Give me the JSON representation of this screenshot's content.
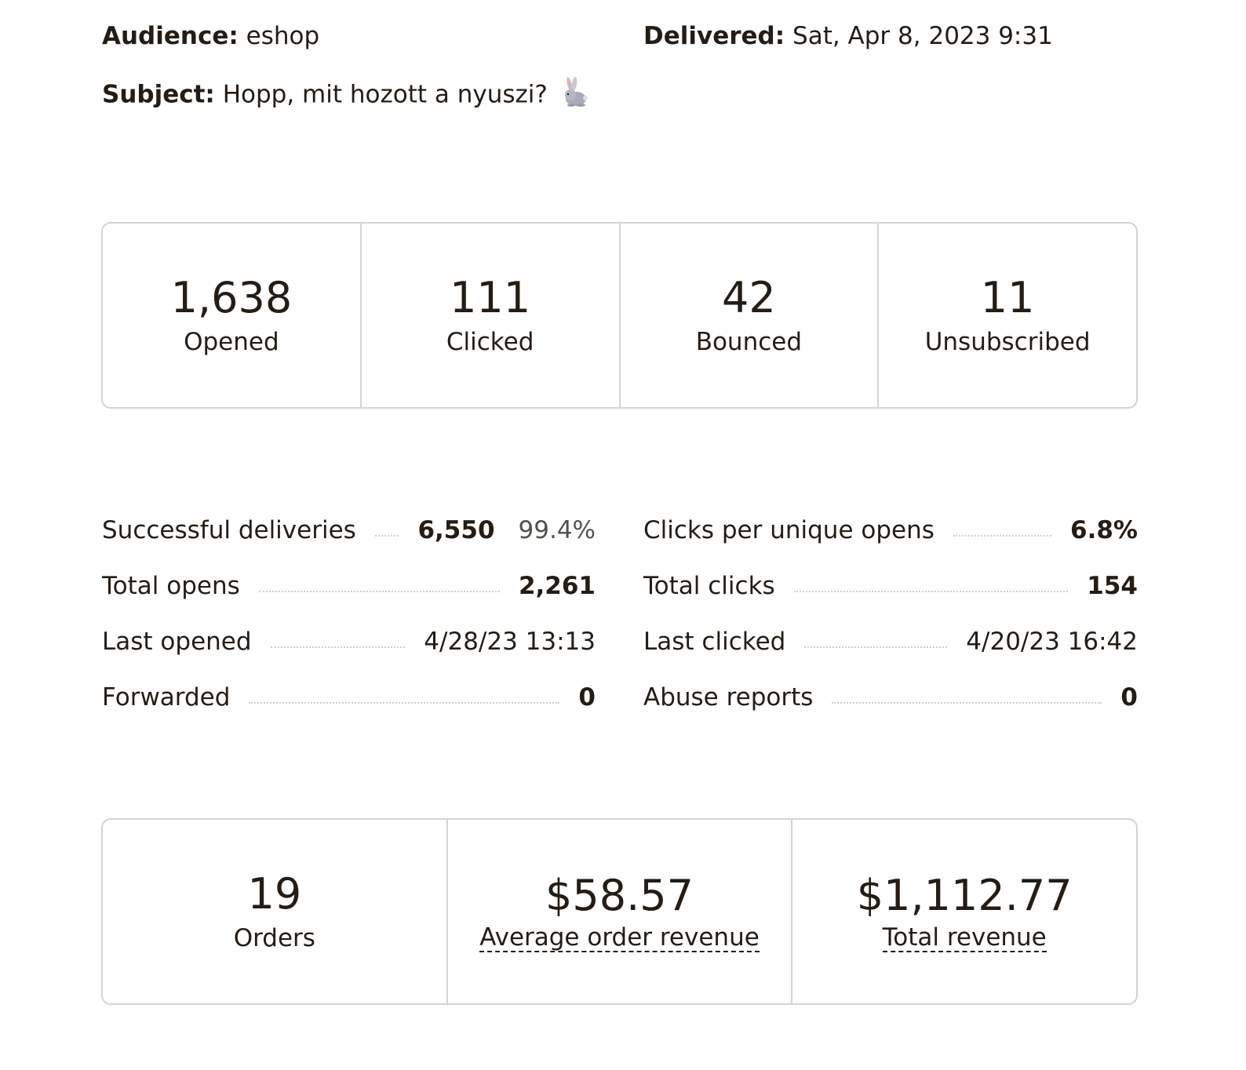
{
  "header": {
    "audience_label": "Audience:",
    "audience_value": "eshop",
    "delivered_label": "Delivered:",
    "delivered_value": "Sat, Apr 8, 2023 9:31",
    "subject_label": "Subject:",
    "subject_value": "Hopp, mit hozott a nyuszi?",
    "subject_emoji_icon": "rabbit-icon"
  },
  "top_stats": [
    {
      "value": "1,638",
      "label": "Opened"
    },
    {
      "value": "111",
      "label": "Clicked"
    },
    {
      "value": "42",
      "label": "Bounced"
    },
    {
      "value": "11",
      "label": "Unsubscribed"
    }
  ],
  "details_left": [
    {
      "label": "Successful deliveries",
      "value": "6,550",
      "pct": "99.4%"
    },
    {
      "label": "Total opens",
      "value": "2,261"
    },
    {
      "label": "Last opened",
      "value": "4/28/23 13:13"
    },
    {
      "label": "Forwarded",
      "value": "0"
    }
  ],
  "details_right": [
    {
      "label": "Clicks per unique opens",
      "value": "6.8%"
    },
    {
      "label": "Total clicks",
      "value": "154"
    },
    {
      "label": "Last clicked",
      "value": "4/20/23 16:42"
    },
    {
      "label": "Abuse reports",
      "value": "0"
    }
  ],
  "revenue_stats": [
    {
      "value": "19",
      "label": "Orders"
    },
    {
      "value": "$58.57",
      "label": "Average order revenue"
    },
    {
      "value": "$1,112.77",
      "label": "Total revenue"
    }
  ],
  "colors": {
    "text": "#241c15",
    "border": "#d4d4d4",
    "dots": "#cfcfcf"
  }
}
